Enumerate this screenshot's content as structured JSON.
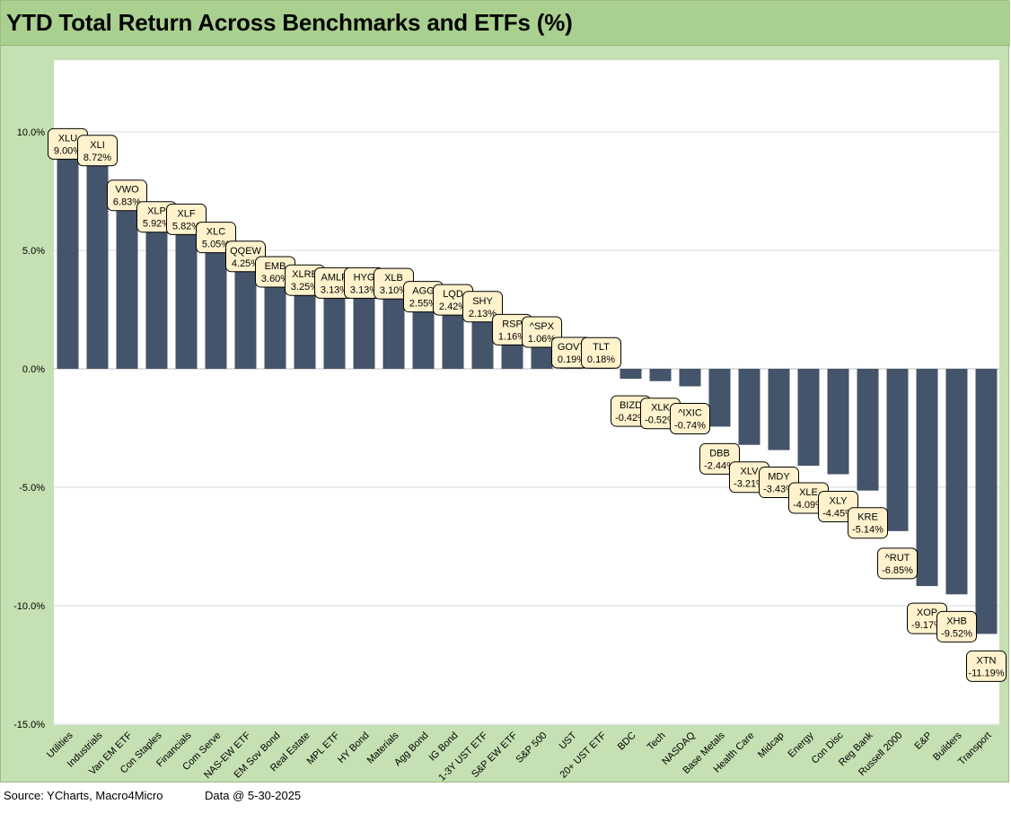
{
  "title": "YTD Total Return Across Benchmarks and ETFs (%)",
  "footer": {
    "source": "Source: YCharts, Macro4Micro",
    "date": "Data @ 5-30-2025"
  },
  "colors": {
    "bar": "#44546a",
    "frame": "#c5e0b3",
    "title_bar": "#a9d08e",
    "label_fill": "#fff2cc"
  },
  "chart_data": {
    "type": "bar",
    "title": "YTD Total Return Across Benchmarks and ETFs (%)",
    "ylim": [
      -15,
      12.5
    ],
    "yticks": [
      10,
      5,
      0,
      -5,
      -10,
      -15
    ],
    "ytick_labels": [
      "10.0%",
      "5.0%",
      "0.0%",
      "-5.0%",
      "-10.0%",
      "-15.0%"
    ],
    "grid": true,
    "categories": [
      "Utilities",
      "Industrials",
      "Van EM ETF",
      "Con Staples",
      "Financials",
      "Com Serve",
      "NAS-EW ETF",
      "EM Sov Bond",
      "Real Estate",
      "MPL ETF",
      "HY Bond",
      "Materials",
      "Agg Bond",
      "IG Bond",
      "1-3Y UST ETF",
      "S&P EW ETF",
      "S&P 500",
      "UST",
      "20+ UST ETF",
      "BDC",
      "Tech",
      "NASDAQ",
      "Base Metals",
      "Health Care",
      "Midcap",
      "Energy",
      "Con Disc",
      "Reg Bank",
      "Russell 2000",
      "E&P",
      "Builders",
      "Transport"
    ],
    "tickers": [
      "XLU",
      "XLI",
      "VWO",
      "XLP",
      "XLF",
      "XLC",
      "QQEW",
      "EMB",
      "XLRE",
      "AMLP",
      "HYG",
      "XLB",
      "AGG",
      "LQD",
      "SHY",
      "RSP",
      "^SPX",
      "GOVT",
      "TLT",
      "BIZD",
      "XLK",
      "^IXIC",
      "DBB",
      "XLV",
      "MDY",
      "XLE",
      "XLY",
      "KRE",
      "^RUT",
      "XOP",
      "XHB",
      "XTN"
    ],
    "values": [
      9.0,
      8.72,
      6.83,
      5.92,
      5.82,
      5.05,
      4.25,
      3.6,
      3.25,
      3.13,
      3.13,
      3.1,
      2.55,
      2.42,
      2.13,
      1.16,
      1.06,
      0.19,
      0.18,
      -0.42,
      -0.52,
      -0.74,
      -2.44,
      -3.21,
      -3.43,
      -4.09,
      -4.45,
      -5.14,
      -6.85,
      -9.17,
      -9.52,
      -11.19
    ],
    "value_labels": [
      "9.00%",
      "8.72%",
      "6.83%",
      "5.92%",
      "5.82%",
      "5.05%",
      "4.25%",
      "3.60%",
      "3.25%",
      "3.13%",
      "3.13%",
      "3.10%",
      "2.55%",
      "2.42%",
      "2.13%",
      "1.16%",
      "1.06%",
      "0.19%",
      "0.18%",
      "-0.42%",
      "-0.52%",
      "-0.74%",
      "-2.44%",
      "-3.21%",
      "-3.43%",
      "-4.09%",
      "-4.45%",
      "-5.14%",
      "-6.85%",
      "-9.17%",
      "-9.52%",
      "-11.19%"
    ]
  }
}
